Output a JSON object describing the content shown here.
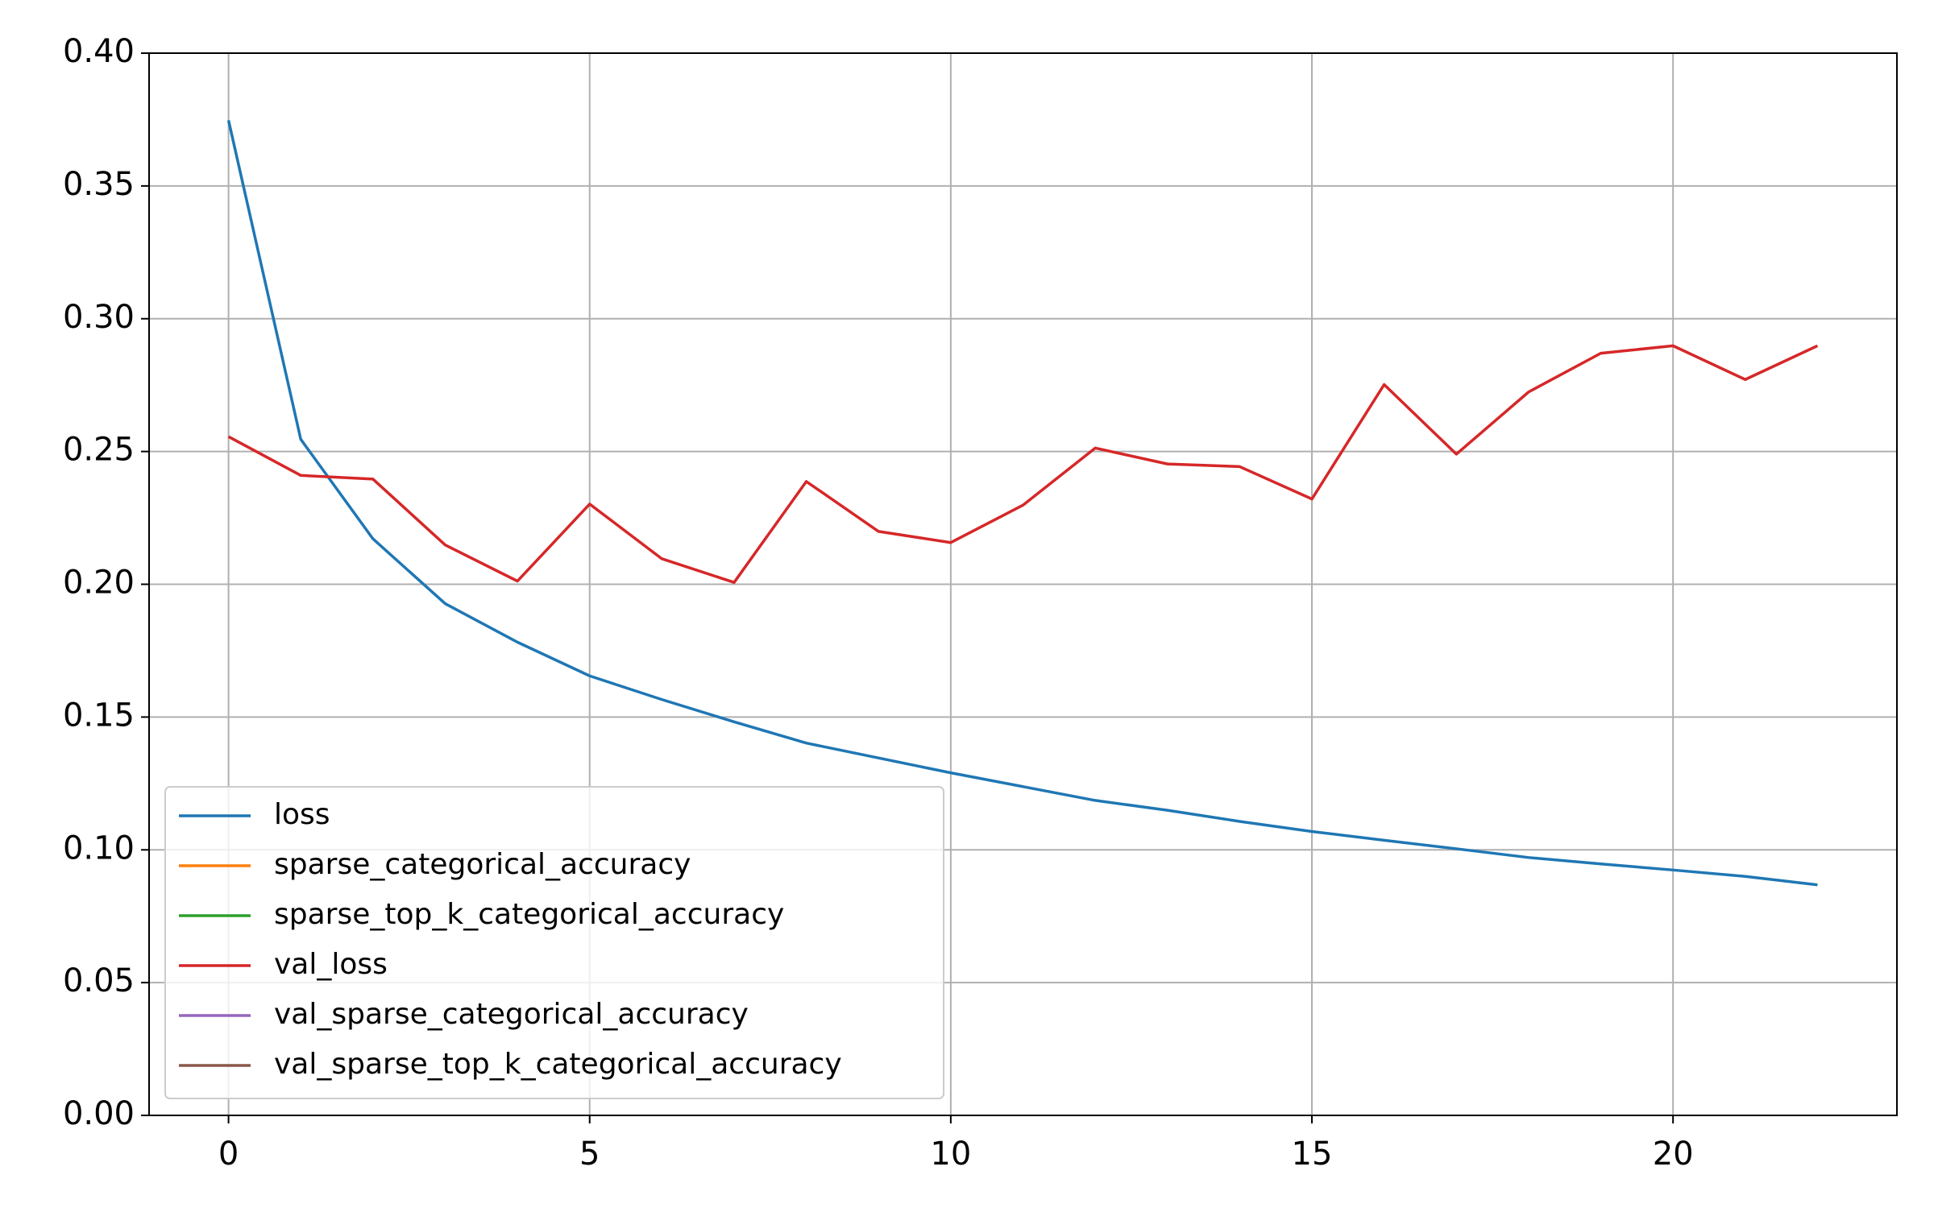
{
  "chart_data": {
    "type": "line",
    "x": [
      0,
      1,
      2,
      3,
      4,
      5,
      6,
      7,
      8,
      9,
      10,
      11,
      12,
      13,
      14,
      15,
      16,
      17,
      18,
      19,
      20,
      21,
      22
    ],
    "series": [
      {
        "name": "loss",
        "color": "#1f77b4",
        "values": [
          0.3747,
          0.2546,
          0.2171,
          0.1927,
          0.1782,
          0.1655,
          0.1566,
          0.1482,
          0.1402,
          0.1346,
          0.129,
          0.1238,
          0.1186,
          0.1149,
          0.1107,
          0.1069,
          0.1036,
          0.1004,
          0.0971,
          0.0947,
          0.0924,
          0.09,
          0.0868
        ]
      },
      {
        "name": "sparse_categorical_accuracy",
        "color": "#ff7f0e",
        "values": [
          null,
          null,
          null,
          null,
          null,
          null,
          null,
          null,
          null,
          null,
          null,
          null,
          null,
          null,
          null,
          null,
          null,
          null,
          null,
          null,
          null,
          null,
          null
        ]
      },
      {
        "name": "sparse_top_k_categorical_accuracy",
        "color": "#2ca02c",
        "values": [
          null,
          null,
          null,
          null,
          null,
          null,
          null,
          null,
          null,
          null,
          null,
          null,
          null,
          null,
          null,
          null,
          null,
          null,
          null,
          null,
          null,
          null,
          null
        ]
      },
      {
        "name": "val_loss",
        "color": "#d62728",
        "values": [
          0.2556,
          0.241,
          0.2396,
          0.2148,
          0.2012,
          0.2302,
          0.2096,
          0.2007,
          0.2387,
          0.2199,
          0.2157,
          0.2298,
          0.2513,
          0.2453,
          0.2443,
          0.2321,
          0.2752,
          0.249,
          0.2724,
          0.287,
          0.2898,
          0.2771,
          0.2898
        ]
      },
      {
        "name": "val_sparse_categorical_accuracy",
        "color": "#9467bd",
        "values": [
          null,
          null,
          null,
          null,
          null,
          null,
          null,
          null,
          null,
          null,
          null,
          null,
          null,
          null,
          null,
          null,
          null,
          null,
          null,
          null,
          null,
          null,
          null
        ]
      },
      {
        "name": "val_sparse_top_k_categorical_accuracy",
        "color": "#8c564b",
        "values": [
          null,
          null,
          null,
          null,
          null,
          null,
          null,
          null,
          null,
          null,
          null,
          null,
          null,
          null,
          null,
          null,
          null,
          null,
          null,
          null,
          null,
          null,
          null
        ]
      }
    ],
    "xlim": [
      -1.1,
      23.1
    ],
    "xticks": [
      0,
      5,
      10,
      15,
      20
    ],
    "ylim": [
      0,
      0.4
    ],
    "yticks": [
      {
        "value": 0,
        "label": "0.00"
      },
      {
        "value": 0.05,
        "label": "0.05"
      },
      {
        "value": 0.1,
        "label": "0.10"
      },
      {
        "value": 0.15,
        "label": "0.15"
      },
      {
        "value": 0.2,
        "label": "0.20"
      },
      {
        "value": 0.25,
        "label": "0.25"
      },
      {
        "value": 0.3,
        "label": "0.30"
      },
      {
        "value": 0.35,
        "label": "0.35"
      },
      {
        "value": 0.4,
        "label": "0.40"
      }
    ],
    "grid": true,
    "legend": "lower left"
  }
}
